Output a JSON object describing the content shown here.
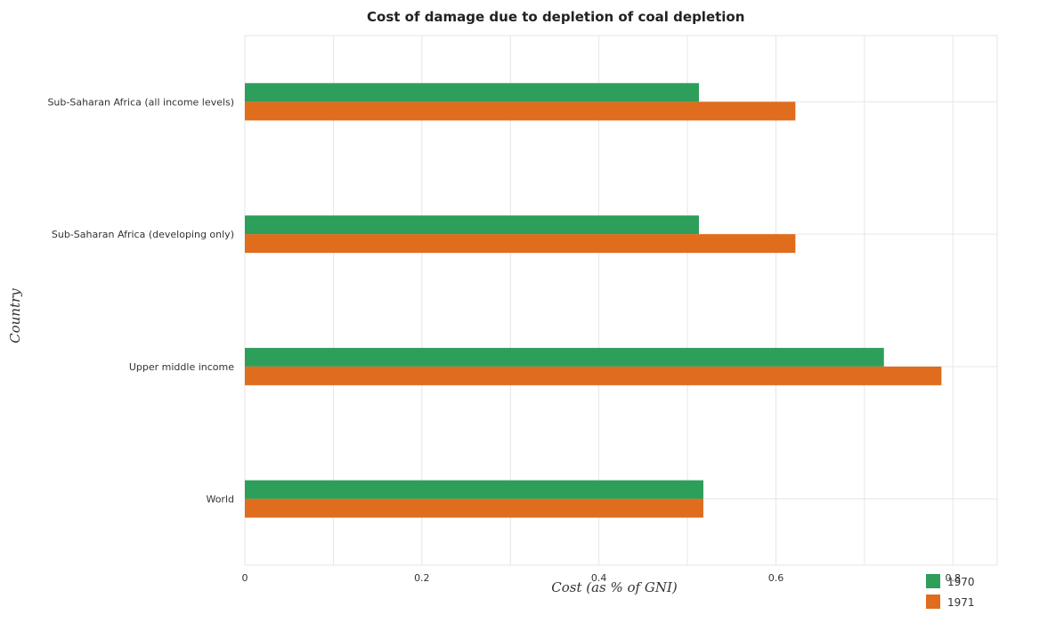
{
  "chart_data": {
    "type": "bar",
    "orientation": "horizontal",
    "title": "Cost of damage due to depletion of coal depletion",
    "xlabel": "Cost (as % of GNI)",
    "ylabel": "Country",
    "categories": [
      "Sub-Saharan Africa (all income levels)",
      "Sub-Saharan Africa (developing only)",
      "Upper middle income",
      "World"
    ],
    "series": [
      {
        "name": "1970",
        "color": "#2e9e5b",
        "values": [
          0.513,
          0.513,
          0.722,
          0.518
        ]
      },
      {
        "name": "1971",
        "color": "#e06c1e",
        "values": [
          0.622,
          0.622,
          0.787,
          0.518
        ]
      }
    ],
    "xlim": [
      0,
      0.85
    ],
    "xticks": [
      "0",
      "0.2",
      "0.4",
      "0.6",
      "0.8"
    ],
    "xtick_values": [
      0,
      0.2,
      0.4,
      0.6,
      0.8
    ],
    "grid": true,
    "legend_position": "bottom-right"
  }
}
